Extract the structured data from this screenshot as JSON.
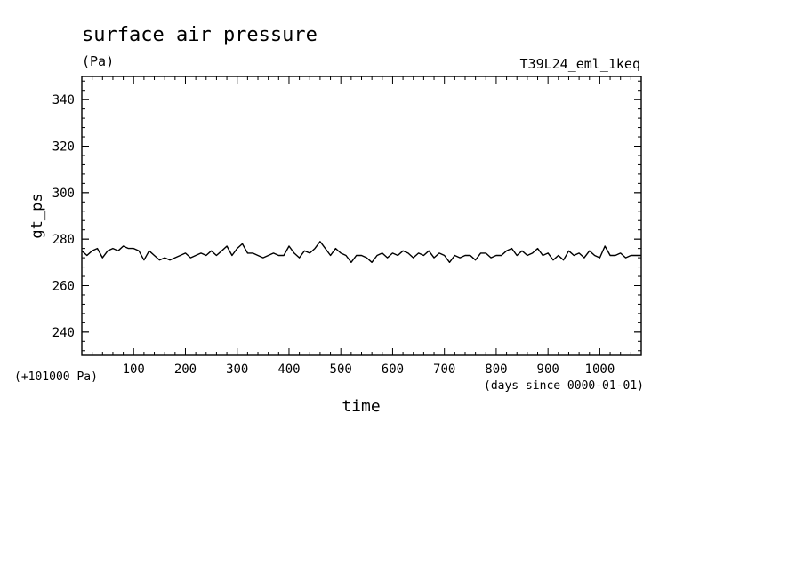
{
  "chart_data": {
    "type": "line",
    "title": "surface air pressure",
    "units": "(Pa)",
    "run_label": "T39L24_eml_1keq",
    "ylabel": "gt_ps",
    "xlabel": "time",
    "y_offset_note": "(+101000 Pa)",
    "x_units_note": "(days since 0000-01-01)",
    "xlim": [
      0,
      1080
    ],
    "ylim": [
      230,
      350
    ],
    "x_ticks": [
      100,
      200,
      300,
      400,
      500,
      600,
      700,
      800,
      900,
      1000
    ],
    "x_tick_labels": [
      "100",
      "200",
      "300",
      "400",
      "500",
      "600",
      "700",
      "800",
      "900",
      "1000"
    ],
    "y_ticks": [
      240,
      260,
      280,
      300,
      320,
      340
    ],
    "y_tick_labels": [
      "240",
      "260",
      "280",
      "300",
      "320",
      "340"
    ],
    "grid": false,
    "line_color": "#000000",
    "series": [
      {
        "x": [
          0,
          10,
          20,
          30,
          40,
          50,
          60,
          70,
          80,
          90,
          100,
          110,
          120,
          130,
          140,
          150,
          160,
          170,
          180,
          190,
          200,
          210,
          220,
          230,
          240,
          250,
          260,
          270,
          280,
          290,
          300,
          310,
          320,
          330,
          340,
          350,
          360,
          370,
          380,
          390,
          400,
          410,
          420,
          430,
          440,
          450,
          460,
          470,
          480,
          490,
          500,
          510,
          520,
          530,
          540,
          550,
          560,
          570,
          580,
          590,
          600,
          610,
          620,
          630,
          640,
          650,
          660,
          670,
          680,
          690,
          700,
          710,
          720,
          730,
          740,
          750,
          760,
          770,
          780,
          790,
          800,
          810,
          820,
          830,
          840,
          850,
          860,
          870,
          880,
          890,
          900,
          910,
          920,
          930,
          940,
          950,
          960,
          970,
          980,
          990,
          1000,
          1010,
          1020,
          1030,
          1040,
          1050,
          1060,
          1070,
          1080
        ],
        "values": [
          275,
          273,
          275,
          276,
          272,
          275,
          276,
          275,
          277,
          276,
          276,
          275,
          271,
          275,
          273,
          271,
          272,
          271,
          272,
          273,
          274,
          272,
          273,
          274,
          273,
          275,
          273,
          275,
          277,
          273,
          276,
          278,
          274,
          274,
          273,
          272,
          273,
          274,
          273,
          273,
          277,
          274,
          272,
          275,
          274,
          276,
          279,
          276,
          273,
          276,
          274,
          273,
          270,
          273,
          273,
          272,
          270,
          273,
          274,
          272,
          274,
          273,
          275,
          274,
          272,
          274,
          273,
          275,
          272,
          274,
          273,
          270,
          273,
          272,
          273,
          273,
          271,
          274,
          274,
          272,
          273,
          273,
          275,
          276,
          273,
          275,
          273,
          274,
          276,
          273,
          274,
          271,
          273,
          271,
          275,
          273,
          274,
          272,
          275,
          273,
          272,
          277,
          273,
          273,
          274,
          272,
          273,
          273,
          273
        ]
      }
    ]
  }
}
